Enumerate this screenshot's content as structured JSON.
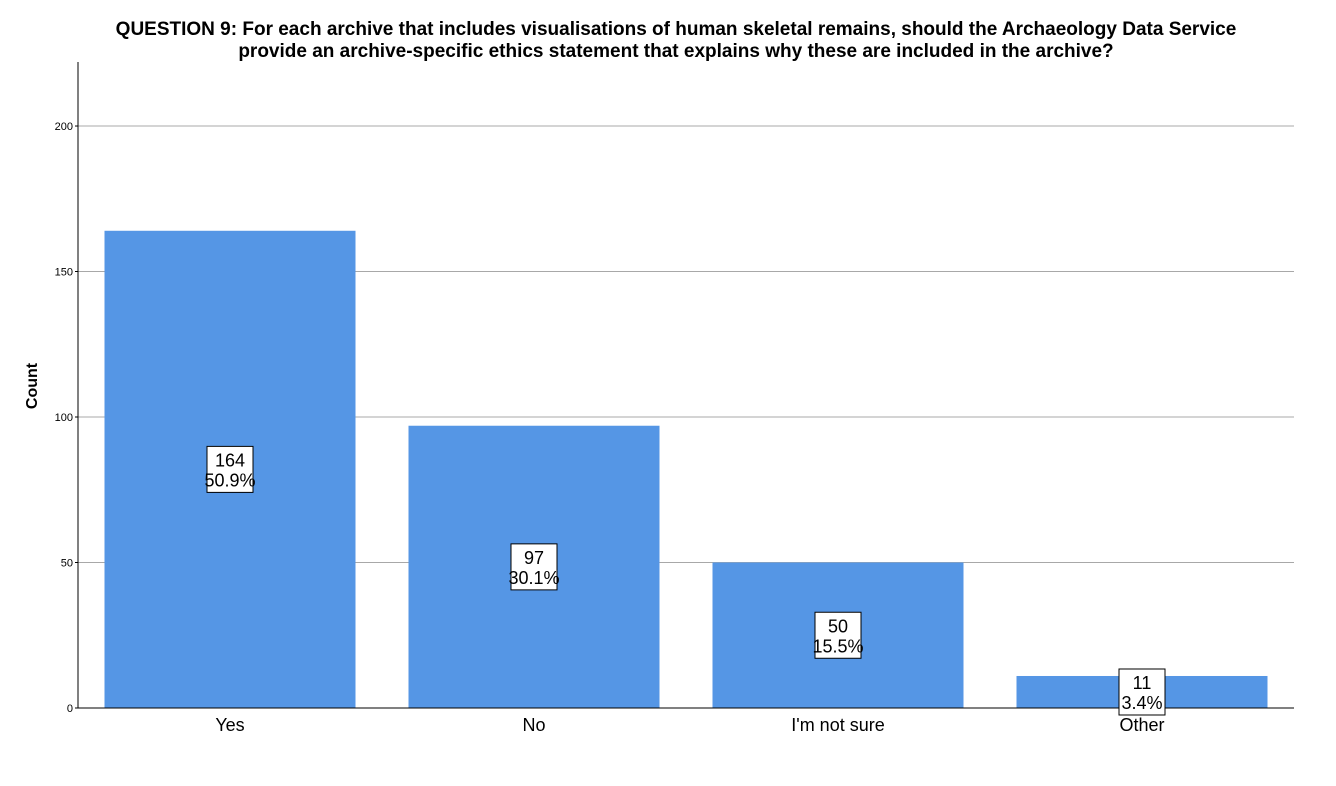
{
  "chart_data": {
    "type": "bar",
    "title_lines": [
      "QUESTION 9: For each archive that includes visualisations of human skeletal remains, should the Archaeology Data Service",
      "provide an archive-specific ethics statement that explains why these are included in the archive?"
    ],
    "xlabel": "",
    "ylabel": "Count",
    "categories": [
      "Yes",
      "No",
      "I'm not sure",
      "Other"
    ],
    "values": [
      164,
      97,
      50,
      11
    ],
    "percent_labels": [
      "50.9%",
      "30.1%",
      "15.5%",
      "3.4%"
    ],
    "ylim": [
      0,
      222
    ],
    "yticks": [
      0,
      50,
      100,
      150,
      200
    ],
    "grid": true,
    "legend": "none",
    "bar_color": "#5596e5",
    "grid_color": "#a8a8a8",
    "axis_color": "#000000"
  }
}
